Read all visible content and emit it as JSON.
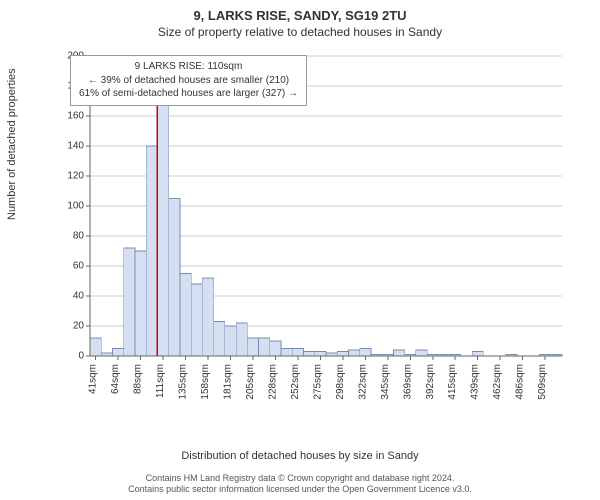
{
  "title": "9, LARKS RISE, SANDY, SG19 2TU",
  "subtitle": "Size of property relative to detached houses in Sandy",
  "y_axis_label": "Number of detached properties",
  "x_axis_label": "Distribution of detached houses by size in Sandy",
  "footer_line1": "Contains HM Land Registry data © Crown copyright and database right 2024.",
  "footer_line2": "Contains public sector information licensed under the Open Government Licence v3.0.",
  "annotation": {
    "line1": "9 LARKS RISE: 110sqm",
    "line2": "← 39% of detached houses are smaller (210)",
    "line3": "61% of semi-detached houses are larger (327) →"
  },
  "chart": {
    "type": "histogram",
    "background_color": "#ffffff",
    "grid_color": "#cccccc",
    "axis_color": "#666666",
    "bar_fill": "#d4e0f2",
    "bar_stroke": "#7a8bb0",
    "marker_color": "#cc0000",
    "ylim": [
      0,
      200
    ],
    "ytick_step": 20,
    "x_tick_labels": [
      "41sqm",
      "64sqm",
      "88sqm",
      "111sqm",
      "135sqm",
      "158sqm",
      "181sqm",
      "205sqm",
      "228sqm",
      "252sqm",
      "275sqm",
      "298sqm",
      "322sqm",
      "345sqm",
      "369sqm",
      "392sqm",
      "415sqm",
      "439sqm",
      "462sqm",
      "486sqm",
      "509sqm"
    ],
    "x_tick_every": 2,
    "marker_bin_index": 6,
    "bars": [
      12,
      2,
      5,
      72,
      70,
      140,
      168,
      105,
      55,
      48,
      52,
      23,
      20,
      22,
      12,
      12,
      10,
      5,
      5,
      3,
      3,
      2,
      3,
      4,
      5,
      1,
      1,
      4,
      1,
      4,
      1,
      1,
      1,
      0,
      3,
      0,
      0,
      1,
      0,
      0,
      1,
      1
    ],
    "label_fontsize": 11,
    "tick_fontsize": 10,
    "title_fontsize": 13
  }
}
